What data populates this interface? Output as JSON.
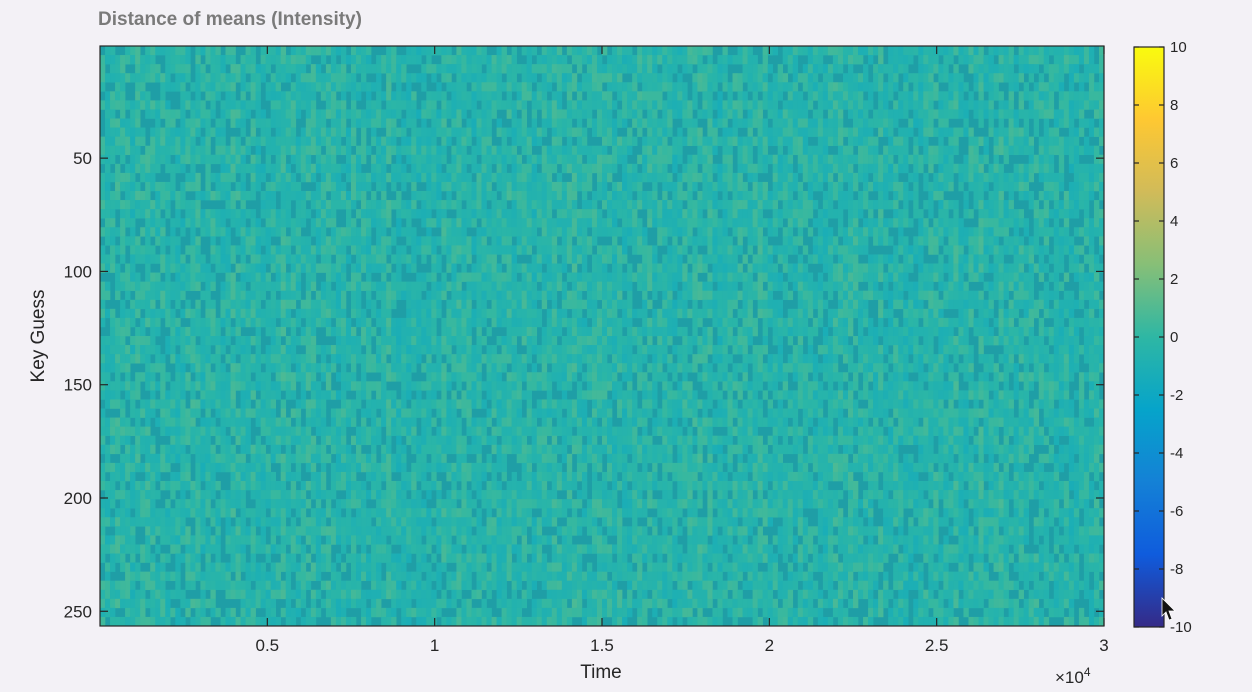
{
  "chart_data": {
    "type": "heatmap",
    "title": "Distance of means (Intensity)",
    "xlabel": "Time",
    "ylabel": "Key Guess",
    "x_exponent_base": "×10",
    "x_exponent_power": "4",
    "xlim": [
      0,
      30000
    ],
    "ylim": [
      1,
      256
    ],
    "y_reversed": true,
    "x_ticks": [
      {
        "value": 5000,
        "label": "0.5"
      },
      {
        "value": 10000,
        "label": "1"
      },
      {
        "value": 15000,
        "label": "1.5"
      },
      {
        "value": 20000,
        "label": "2"
      },
      {
        "value": 25000,
        "label": "2.5"
      },
      {
        "value": 30000,
        "label": "3"
      }
    ],
    "y_ticks": [
      {
        "value": 50,
        "label": "50"
      },
      {
        "value": 100,
        "label": "100"
      },
      {
        "value": 150,
        "label": "150"
      },
      {
        "value": 200,
        "label": "200"
      },
      {
        "value": 250,
        "label": "250"
      }
    ],
    "colorbar": {
      "colormap": "parula",
      "clim": [
        -10,
        10
      ],
      "ticks": [
        {
          "value": 10,
          "label": "10"
        },
        {
          "value": 8,
          "label": "8"
        },
        {
          "value": 6,
          "label": "6"
        },
        {
          "value": 4,
          "label": "4"
        },
        {
          "value": 2,
          "label": "2"
        },
        {
          "value": 0,
          "label": "0"
        },
        {
          "value": -2,
          "label": "-2"
        },
        {
          "value": -4,
          "label": "-4"
        },
        {
          "value": -6,
          "label": "-6"
        },
        {
          "value": -8,
          "label": "-8"
        },
        {
          "value": -10,
          "label": "-10"
        }
      ]
    },
    "data_summary": {
      "description": "dense noise-like field",
      "approx_value_range": [
        -1,
        0.8
      ],
      "dominant_value": 0
    },
    "grid": false
  },
  "colors": {
    "background": "#f3f1f6",
    "heatmap_base": "#1f9ea6",
    "parula_stops": [
      "#352a87",
      "#0f5cdd",
      "#1481d6",
      "#06a4ca",
      "#2eb7a4",
      "#87bf77",
      "#d1bb59",
      "#fec832",
      "#f9fb0e"
    ]
  }
}
